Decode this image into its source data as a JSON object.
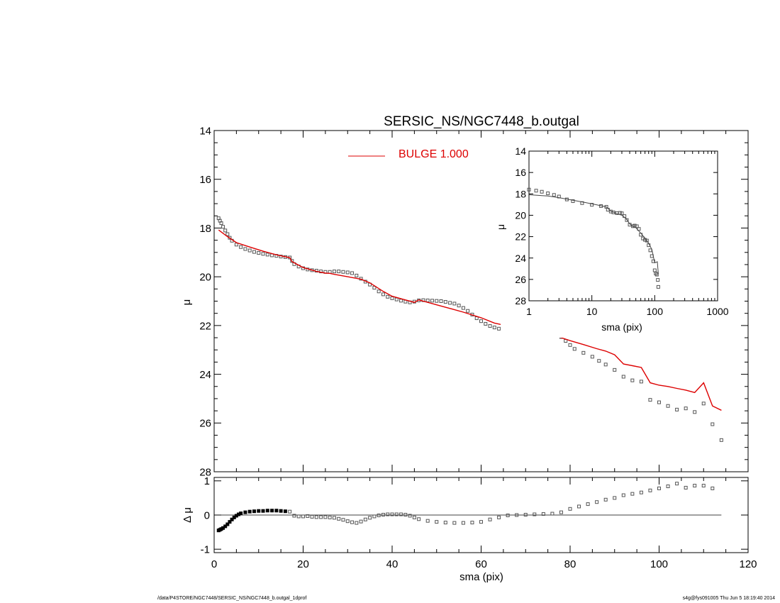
{
  "footer": {
    "path": "/data/P4STORE/NGC7448/SERSIC_NS/NGC7448_b.outgal_1dprof",
    "stamp": "s4g@fys091005  Thu Jun  5 18:19:40 2014"
  },
  "colors": {
    "model": "#dd0000",
    "data": "#555555",
    "axes": "#000000"
  },
  "chart_data": [
    {
      "id": "main",
      "type": "scatter",
      "title": "SERSIC_NS/NGC7448_b.outgal",
      "xlabel": "",
      "ylabel": "μ",
      "xlim": [
        0,
        120
      ],
      "ylim": [
        28,
        14
      ],
      "y_inverted": true,
      "yticks": [
        14,
        16,
        18,
        20,
        22,
        24,
        26,
        28
      ],
      "legend": {
        "placement": "top-center",
        "entries": [
          {
            "label": "BULGE  1.000",
            "color": "#dd0000"
          }
        ]
      },
      "series": [
        {
          "name": "data",
          "marker": "open-square",
          "color": "#555555",
          "x": [
            1.0,
            1.3,
            1.6,
            2.0,
            2.5,
            3.0,
            3.5,
            4.0,
            5.0,
            6.0,
            7.0,
            8.0,
            9.0,
            10.0,
            11.0,
            12.0,
            13.0,
            14.0,
            15.0,
            16.0,
            17.0,
            17.5,
            18.0,
            19.0,
            20.0,
            21.0,
            22.0,
            23.0,
            24.0,
            25.0,
            26.0,
            27.0,
            28.0,
            29.0,
            30.0,
            31.0,
            32.0,
            33.0,
            34.0,
            35.0,
            36.0,
            37.0,
            38.0,
            39.0,
            40.0,
            41.0,
            42.0,
            43.0,
            44.0,
            45.0,
            46.0,
            47.0,
            48.0,
            49.0,
            50.0,
            51.0,
            52.0,
            53.0,
            54.0,
            55.0,
            56.0,
            57.0,
            58.0,
            59.0,
            60.0,
            61.0,
            62.0,
            63.0,
            64.0,
            65.0,
            66.0,
            67.0,
            68.0,
            69.0,
            70.0,
            71.0,
            72.0,
            73.0,
            74.0,
            75.0,
            76.0,
            77.0,
            78.0,
            79.0,
            80.0,
            81.0,
            83.0,
            85.0,
            86.5,
            88.0,
            90.0,
            92.0,
            94.0,
            96.0,
            98.0,
            100.0,
            102.0,
            104.0,
            106.0,
            108.0,
            110.0,
            112.0,
            114.0
          ],
          "y": [
            17.6,
            17.7,
            17.8,
            17.95,
            18.1,
            18.25,
            18.4,
            18.52,
            18.68,
            18.78,
            18.86,
            18.92,
            18.98,
            19.02,
            19.06,
            19.09,
            19.12,
            19.14,
            19.17,
            19.19,
            19.21,
            19.35,
            19.48,
            19.58,
            19.65,
            19.7,
            19.73,
            19.75,
            19.78,
            19.8,
            19.8,
            19.78,
            19.78,
            19.8,
            19.82,
            19.85,
            19.95,
            20.08,
            20.2,
            20.32,
            20.45,
            20.6,
            20.72,
            20.82,
            20.88,
            20.93,
            20.98,
            21.02,
            21.05,
            21.02,
            20.97,
            20.96,
            20.97,
            20.98,
            20.99,
            21.0,
            21.03,
            21.07,
            21.1,
            21.18,
            21.28,
            21.4,
            21.55,
            21.7,
            21.82,
            21.93,
            22.02,
            22.08,
            22.13,
            22.17,
            22.21,
            22.23,
            22.25,
            22.27,
            22.3,
            22.32,
            22.34,
            22.35,
            22.36,
            22.37,
            22.38,
            22.41,
            22.47,
            22.63,
            22.8,
            22.96,
            23.12,
            23.28,
            23.45,
            23.6,
            23.82,
            24.1,
            24.25,
            24.3,
            25.05,
            25.15,
            25.3,
            25.45,
            25.4,
            25.55,
            25.2,
            26.05,
            26.7
          ]
        },
        {
          "name": "BULGE  1.000",
          "line": true,
          "color": "#dd0000",
          "x": [
            1.0,
            3.0,
            5.0,
            8.0,
            11.0,
            14.0,
            17.0,
            17.5,
            20.0,
            23.0,
            25.0,
            26.0,
            27.0,
            30.0,
            33.0,
            35.0,
            38.0,
            40.0,
            43.0,
            45.0,
            46.0,
            48.0,
            50.0,
            53.0,
            56.0,
            60.0,
            63.0,
            66.0,
            70.0,
            73.0,
            76.0,
            78.0,
            80.0,
            83.0,
            86.0,
            88.0,
            90.0,
            92.0,
            94.0,
            96.0,
            98.0,
            100.0,
            102.0,
            104.0,
            106.0,
            108.0,
            110.0,
            112.0,
            114.0
          ],
          "y": [
            18.08,
            18.35,
            18.6,
            18.78,
            18.95,
            19.1,
            19.22,
            19.38,
            19.62,
            19.78,
            19.85,
            19.86,
            19.9,
            20.0,
            20.1,
            20.25,
            20.6,
            20.8,
            20.95,
            21.05,
            20.95,
            21.05,
            21.15,
            21.3,
            21.45,
            21.68,
            21.9,
            22.02,
            22.15,
            22.28,
            22.38,
            22.5,
            22.62,
            22.78,
            22.95,
            23.05,
            23.2,
            23.58,
            23.65,
            23.72,
            24.35,
            24.45,
            24.5,
            24.58,
            24.65,
            24.75,
            24.35,
            25.3,
            25.48
          ]
        }
      ]
    },
    {
      "id": "inset",
      "type": "scatter",
      "xlabel": "sma (pix)",
      "ylabel": "μ",
      "xscale": "log",
      "xlim": [
        1,
        1000
      ],
      "xticks": [
        1,
        10,
        100,
        1000
      ],
      "ylim": [
        28,
        14
      ],
      "y_inverted": true,
      "yticks": [
        14,
        16,
        18,
        20,
        22,
        24,
        26,
        28
      ],
      "series": [
        {
          "name": "data",
          "marker": "open-square",
          "color": "#555555",
          "x": [
            1.0,
            1.3,
            1.6,
            2.0,
            2.5,
            3.0,
            4.0,
            5.0,
            7.0,
            10.0,
            14.0,
            17.0,
            18.0,
            20.0,
            22.0,
            25.0,
            28.0,
            30.0,
            33.0,
            36.0,
            40.0,
            45.0,
            48.0,
            52.0,
            56.0,
            60.0,
            65.0,
            70.0,
            75.0,
            80.0,
            85.0,
            90.0,
            95.0,
            100.0,
            104.0,
            108.0,
            112.0,
            114.0
          ],
          "y": [
            17.6,
            17.7,
            17.8,
            17.95,
            18.1,
            18.25,
            18.52,
            18.68,
            18.86,
            19.02,
            19.14,
            19.21,
            19.48,
            19.65,
            19.73,
            19.8,
            19.78,
            19.82,
            20.08,
            20.45,
            20.88,
            21.02,
            20.97,
            21.03,
            21.28,
            21.82,
            22.17,
            22.3,
            22.37,
            22.8,
            23.28,
            23.82,
            24.3,
            25.15,
            25.45,
            25.55,
            26.05,
            26.7
          ]
        },
        {
          "name": "model",
          "line": true,
          "color": "#444444",
          "x": [
            1.0,
            2.0,
            3.0,
            5.0,
            8.0,
            12.0,
            17.0,
            20.0,
            25.0,
            30.0,
            35.0,
            40.0,
            45.0,
            50.0,
            60.0,
            70.0,
            80.0,
            90.0,
            100.0,
            110.0,
            114.0
          ],
          "y": [
            18.08,
            18.2,
            18.35,
            18.6,
            18.82,
            19.02,
            19.22,
            19.62,
            19.85,
            20.0,
            20.3,
            20.8,
            21.05,
            21.15,
            21.68,
            22.15,
            22.62,
            23.2,
            24.45,
            24.35,
            25.48
          ]
        }
      ]
    },
    {
      "id": "residual",
      "type": "scatter",
      "xlabel": "sma (pix)",
      "ylabel": "Δ μ",
      "xlim": [
        0,
        120
      ],
      "xticks": [
        0,
        20,
        40,
        60,
        80,
        100,
        120
      ],
      "ylim": [
        -1.1,
        1.1
      ],
      "yticks": [
        -1,
        0,
        1
      ],
      "reference_line": 0,
      "series": [
        {
          "name": "residual",
          "marker": "open-square",
          "color": "#555555",
          "x": [
            1.0,
            1.3,
            1.6,
            2.0,
            2.5,
            3.0,
            3.5,
            4.0,
            4.5,
            5.0,
            5.5,
            6.0,
            7.0,
            8.0,
            9.0,
            10.0,
            11.0,
            12.0,
            13.0,
            14.0,
            15.0,
            16.0,
            17.0,
            18.0,
            19.0,
            20.0,
            21.0,
            22.0,
            23.0,
            24.0,
            25.0,
            26.0,
            27.0,
            28.0,
            29.0,
            30.0,
            31.0,
            32.0,
            33.0,
            34.0,
            35.0,
            36.0,
            37.0,
            38.0,
            39.0,
            40.0,
            41.0,
            42.0,
            43.0,
            44.0,
            45.0,
            46.0,
            48.0,
            50.0,
            52.0,
            54.0,
            56.0,
            58.0,
            60.0,
            62.0,
            64.0,
            66.0,
            68.0,
            70.0,
            72.0,
            74.0,
            76.0,
            78.0,
            80.0,
            82.0,
            84.0,
            86.0,
            88.0,
            90.0,
            92.0,
            94.0,
            96.0,
            98.0,
            100.0,
            102.0,
            104.0,
            106.0,
            108.0,
            110.0,
            112.0
          ],
          "y": [
            -0.45,
            -0.43,
            -0.41,
            -0.38,
            -0.33,
            -0.27,
            -0.2,
            -0.13,
            -0.07,
            -0.02,
            0.02,
            0.05,
            0.08,
            0.1,
            0.11,
            0.12,
            0.12,
            0.13,
            0.13,
            0.13,
            0.12,
            0.11,
            0.1,
            -0.02,
            -0.04,
            -0.04,
            -0.03,
            -0.05,
            -0.06,
            -0.06,
            -0.06,
            -0.07,
            -0.08,
            -0.11,
            -0.14,
            -0.18,
            -0.21,
            -0.23,
            -0.19,
            -0.13,
            -0.08,
            -0.04,
            -0.01,
            0.01,
            0.02,
            0.02,
            0.02,
            0.02,
            0.01,
            -0.02,
            -0.07,
            -0.12,
            -0.17,
            -0.2,
            -0.22,
            -0.23,
            -0.23,
            -0.22,
            -0.2,
            -0.13,
            -0.07,
            -0.01,
            0.0,
            0.01,
            0.02,
            0.03,
            0.04,
            0.08,
            0.18,
            0.25,
            0.32,
            0.38,
            0.45,
            0.5,
            0.58,
            0.62,
            0.66,
            0.72,
            0.78,
            0.84,
            0.92,
            0.8,
            0.86,
            0.86,
            0.78
          ]
        }
      ]
    }
  ]
}
